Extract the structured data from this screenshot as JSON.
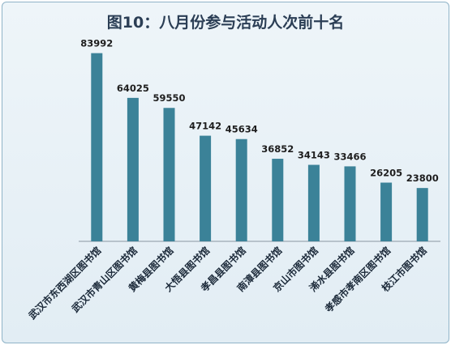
{
  "chart_data": {
    "type": "bar",
    "title": "图10：八月份参与活动人次前十名",
    "categories": [
      "武汉市东西湖区图书馆",
      "武汉市青山区图书馆",
      "黄梅县图书馆",
      "大悟县图书馆",
      "孝昌县图书馆",
      "南漳县图书馆",
      "京山市图书馆",
      "浠水县图书馆",
      "孝感市孝南区图书馆",
      "枝江市图书馆"
    ],
    "values": [
      83992,
      64025,
      59550,
      47142,
      45634,
      36852,
      34143,
      33466,
      26205,
      23800
    ],
    "ylim": [
      0,
      90000
    ],
    "bar_color": "#3b8298",
    "grid": false,
    "legend": "none"
  }
}
